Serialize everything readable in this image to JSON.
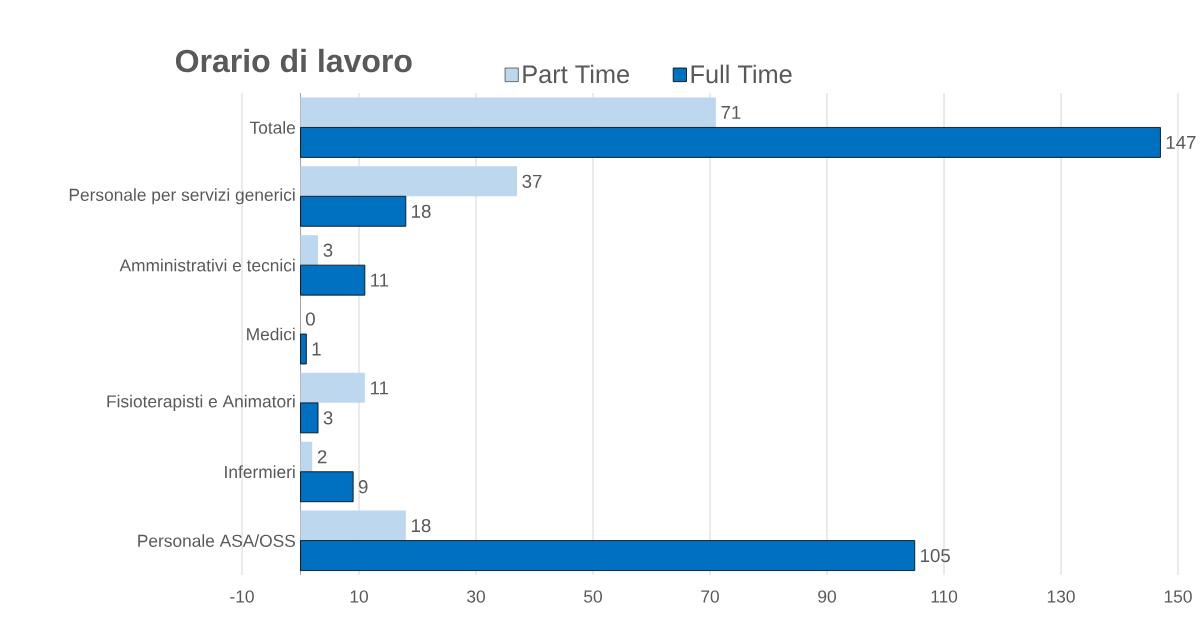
{
  "chart_data": {
    "type": "bar",
    "orientation": "horizontal",
    "title": "Orario di lavoro",
    "categories": [
      "Totale",
      "Personale per servizi generici",
      "Amministrativi e tecnici",
      "Medici",
      "Fisioterapisti e Animatori",
      "Infermieri",
      "Personale ASA/OSS"
    ],
    "series": [
      {
        "name": "Part Time",
        "color": "#bdd7ee",
        "values": [
          71,
          37,
          3,
          0,
          11,
          2,
          18
        ]
      },
      {
        "name": "Full Time",
        "color": "#0070c0",
        "values": [
          147,
          18,
          11,
          1,
          3,
          9,
          105
        ]
      }
    ],
    "xlim": [
      -10,
      150
    ],
    "xticks": [
      -10,
      10,
      30,
      50,
      70,
      90,
      110,
      130,
      150
    ],
    "grid": "x",
    "legend": "top",
    "data_labels": true
  }
}
